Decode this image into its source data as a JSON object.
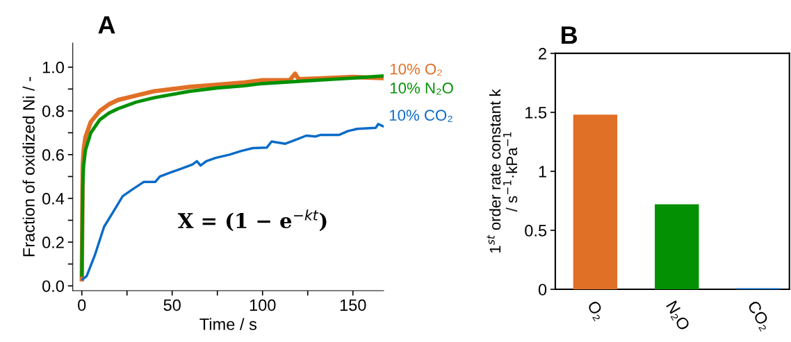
{
  "chart_data": [
    {
      "type": "line",
      "title": "A",
      "xlabel": "Time / s",
      "ylabel": "Fraction of oxidized Ni / -",
      "xlim": [
        -5,
        167
      ],
      "ylim": [
        -0.022,
        1.11
      ],
      "xticks": [
        0,
        {
          "value": 25,
          "label": null
        },
        50,
        {
          "value": 75,
          "label": null
        },
        100,
        {
          "value": 125,
          "label": null
        },
        150
      ],
      "yticks": [
        {
          "value": 0,
          "label": "0.0"
        },
        {
          "value": 0.1,
          "label": null
        },
        0.2,
        {
          "value": 0.3,
          "label": null
        },
        0.4,
        {
          "value": 0.5,
          "label": null
        },
        0.6,
        {
          "value": 0.7,
          "label": null
        },
        0.8,
        {
          "value": 0.9,
          "label": null
        },
        {
          "value": 1,
          "label": "1.0"
        }
      ],
      "grid": false,
      "legend": false,
      "annotations": [
        "X = (1 − e$^{−kt}$)"
      ],
      "series": [
        {
          "name": "10% O₂",
          "color": "#e07026",
          "x": [
            0,
            0.5,
            1,
            2,
            5,
            10,
            15,
            20,
            30,
            40,
            50,
            60,
            75,
            90,
            100,
            115,
            118,
            120,
            135,
            150,
            167
          ],
          "values": [
            0.03,
            0.55,
            0.62,
            0.68,
            0.75,
            0.8,
            0.83,
            0.85,
            0.87,
            0.89,
            0.9,
            0.91,
            0.92,
            0.93,
            0.94,
            0.94,
            0.97,
            0.945,
            0.95,
            0.955,
            0.95
          ]
        },
        {
          "name": "10% N₂O",
          "color": "#039103",
          "x": [
            0,
            0.5,
            1,
            2,
            5,
            10,
            15,
            20,
            30,
            40,
            50,
            60,
            75,
            90,
            100,
            120,
            140,
            150,
            167
          ],
          "values": [
            0.05,
            0.45,
            0.55,
            0.62,
            0.7,
            0.76,
            0.79,
            0.81,
            0.84,
            0.86,
            0.875,
            0.89,
            0.905,
            0.915,
            0.925,
            0.935,
            0.945,
            0.95,
            0.96
          ]
        },
        {
          "name": "10% CO₂",
          "color": "#0a6bc8",
          "x": [
            0.5,
            2.7,
            7.2,
            12.3,
            17.5,
            22.6,
            27.8,
            34.2,
            40.6,
            43.2,
            49.6,
            54.8,
            61.2,
            63.7,
            65.7,
            68.9,
            74,
            81.8,
            88.2,
            94.6,
            102.3,
            105,
            112.6,
            119,
            124.2,
            129.3,
            131.9,
            142.2,
            147.3,
            152.4,
            162.7,
            164,
            166.6
          ],
          "values": [
            0.03,
            0.045,
            0.14,
            0.27,
            0.34,
            0.41,
            0.44,
            0.475,
            0.475,
            0.5,
            0.52,
            0.535,
            0.555,
            0.57,
            0.55,
            0.57,
            0.585,
            0.6,
            0.617,
            0.63,
            0.632,
            0.66,
            0.65,
            0.67,
            0.687,
            0.683,
            0.69,
            0.69,
            0.708,
            0.718,
            0.723,
            0.74,
            0.73
          ]
        }
      ]
    },
    {
      "type": "bar",
      "title": "B",
      "ylabel": "1$^{st}$ order rate constant k\n/ s$^{−1}$·kPa$^{−1}$",
      "categories": [
        "O₂",
        "N₂O",
        "CO₂"
      ],
      "values": [
        1.48,
        0.72,
        0.01
      ],
      "colors": [
        "#e07026",
        "#039103",
        "#0a6bc8"
      ],
      "ylim": [
        0,
        2
      ],
      "yticks": [
        0,
        0.5,
        1,
        1.5,
        2
      ],
      "grid": false,
      "legend": false
    }
  ]
}
